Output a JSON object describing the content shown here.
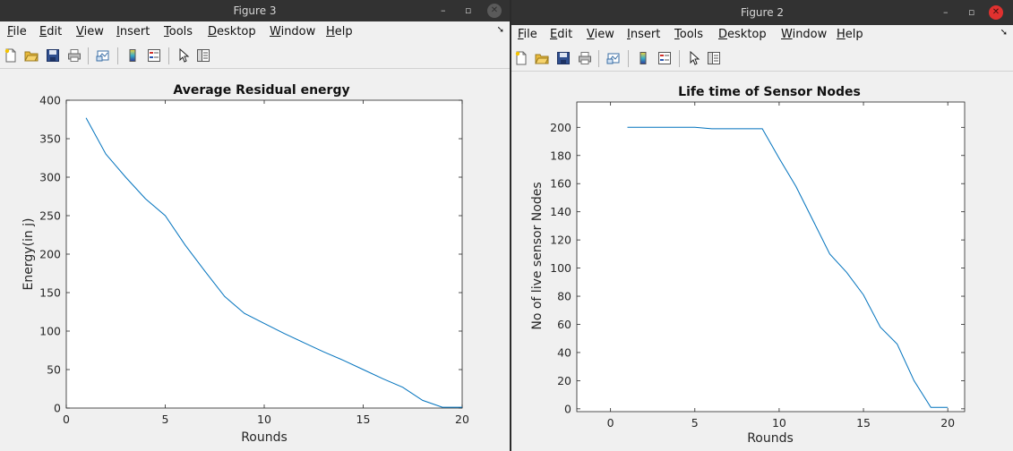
{
  "menu_items": [
    "File",
    "Edit",
    "View",
    "Insert",
    "Tools",
    "Desktop",
    "Window",
    "Help"
  ],
  "window_controls": {
    "minimize": "–",
    "restore": "▫",
    "close": "✕"
  },
  "toolbar_icons": [
    "new-figure-icon",
    "open-file-icon",
    "save-icon",
    "print-icon",
    "link-plot-icon",
    "colorbar-icon",
    "legend-icon",
    "pointer-icon",
    "property-inspector-icon"
  ],
  "colors": {
    "line": "#0072bd",
    "titlebar": "#323232",
    "close_active": "#e0312f"
  },
  "figure3": {
    "window_title": "Figure 3",
    "chart_data": {
      "type": "line",
      "title": "Average Residual energy",
      "xlabel": "Rounds",
      "ylabel": "Energy(in j)",
      "xlim": [
        0,
        20
      ],
      "ylim": [
        0,
        400
      ],
      "xticks": [
        0,
        5,
        10,
        15,
        20
      ],
      "yticks": [
        0,
        50,
        100,
        150,
        200,
        250,
        300,
        350,
        400
      ],
      "xtick_labels": [
        "0",
        "5",
        "10",
        "15",
        "20"
      ],
      "ytick_labels": [
        "0",
        "50",
        "100",
        "150",
        "200",
        "250",
        "300",
        "350",
        "400"
      ],
      "grid": false,
      "x": [
        1,
        2,
        3,
        4,
        5,
        6,
        7,
        8,
        9,
        10,
        11,
        12,
        13,
        14,
        15,
        16,
        17,
        18,
        19,
        20
      ],
      "y": [
        377,
        330,
        300,
        272,
        250,
        212,
        178,
        145,
        123,
        110,
        97,
        85,
        73,
        62,
        50,
        38,
        27,
        10,
        1,
        1
      ]
    }
  },
  "figure2": {
    "window_title": "Figure 2",
    "chart_data": {
      "type": "line",
      "title": "Life time of Sensor Nodes",
      "xlabel": "Rounds",
      "ylabel": "No of live sensor Nodes",
      "xlim": [
        -2,
        21
      ],
      "ylim": [
        -2,
        218
      ],
      "xticks": [
        0,
        5,
        10,
        15,
        20
      ],
      "yticks": [
        0,
        20,
        40,
        60,
        80,
        100,
        120,
        140,
        160,
        180,
        200
      ],
      "xtick_labels": [
        "0",
        "5",
        "10",
        "15",
        "20"
      ],
      "ytick_labels": [
        "0",
        "20",
        "40",
        "60",
        "80",
        "100",
        "120",
        "140",
        "160",
        "180",
        "200"
      ],
      "grid": false,
      "x": [
        1,
        2,
        3,
        4,
        5,
        6,
        7,
        8,
        9,
        10,
        11,
        12,
        13,
        14,
        15,
        16,
        17,
        18,
        19,
        20
      ],
      "y": [
        200,
        200,
        200,
        200,
        200,
        199,
        199,
        199,
        199,
        178,
        158,
        134,
        110,
        97,
        81,
        58,
        46,
        20,
        1,
        1
      ]
    }
  }
}
